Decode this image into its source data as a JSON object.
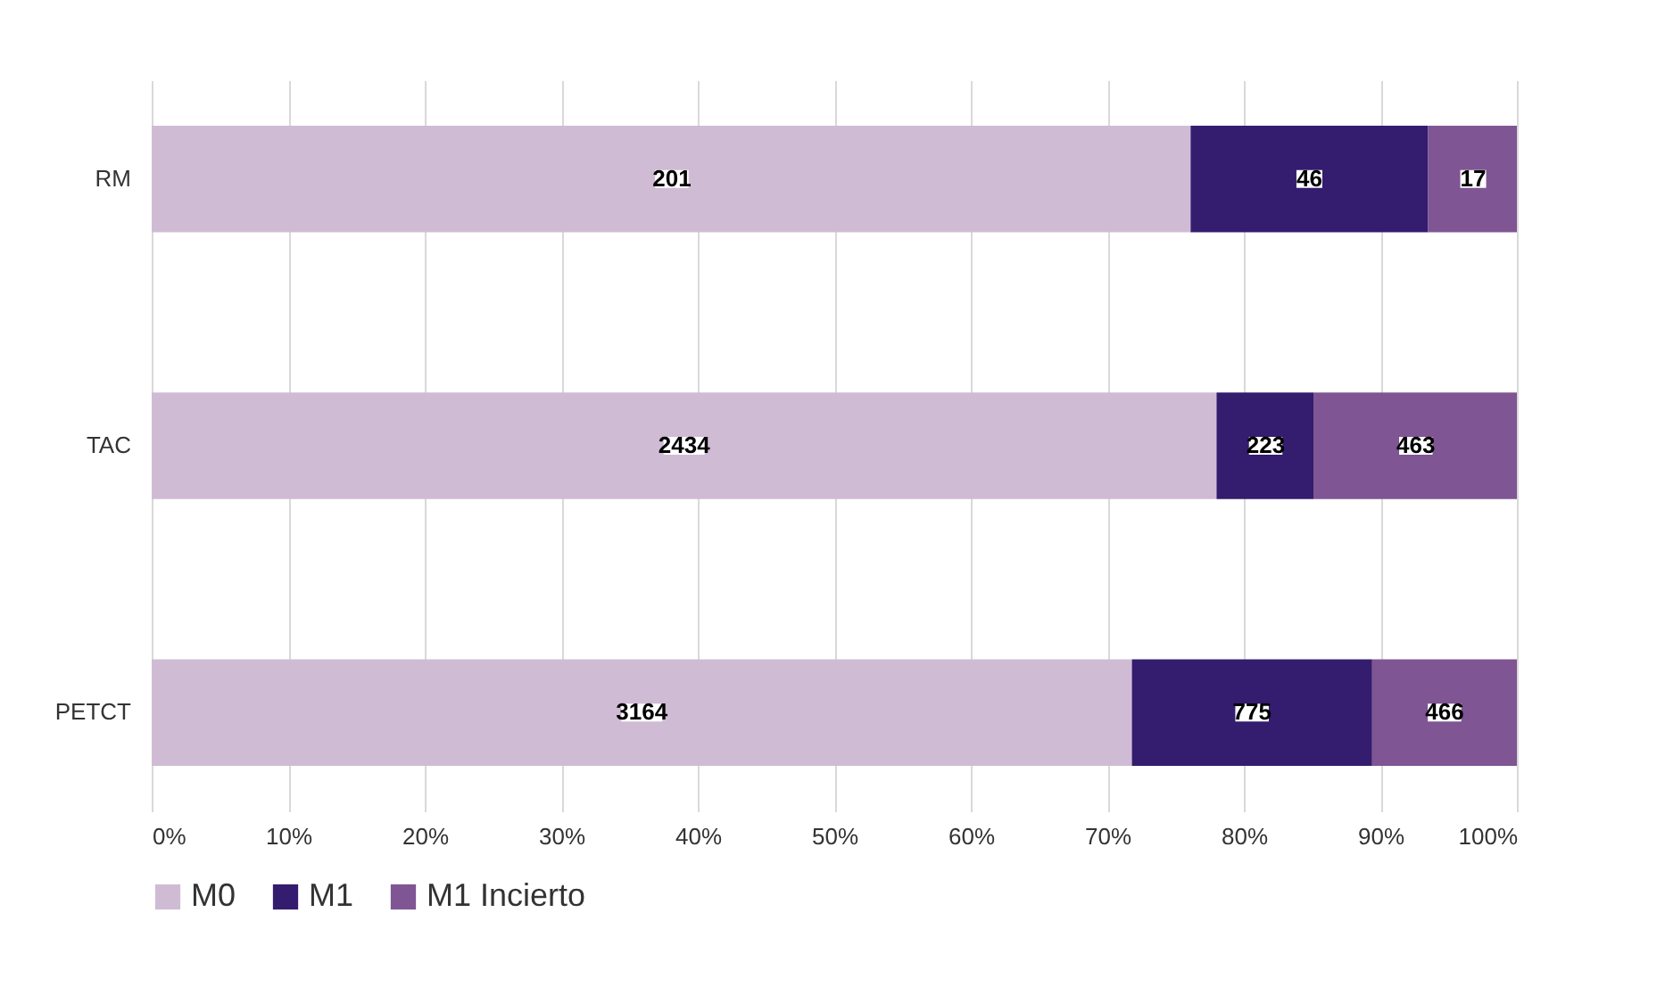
{
  "chart_data": {
    "type": "bar",
    "orientation": "horizontal",
    "stacked": true,
    "categories": [
      "RM",
      "TAC",
      "PETCT"
    ],
    "series": [
      {
        "name": "M0",
        "color": "#cfbcd4",
        "values": [
          76.1,
          78.0,
          71.8
        ]
      },
      {
        "name": "M1",
        "color": "#341c6e",
        "values": [
          17.4,
          7.1,
          17.6
        ]
      },
      {
        "name": "M1 Incierto",
        "color": "#7f5594",
        "values": [
          6.5,
          14.9,
          10.6
        ]
      }
    ],
    "annotations": [
      {
        "text": "201",
        "x": 38.1,
        "y": "RM"
      },
      {
        "text": "46",
        "x": 84.8,
        "y": "RM"
      },
      {
        "text": "17",
        "x": 96.8,
        "y": "RM"
      },
      {
        "text": "2434",
        "x": 39.0,
        "y": "TAC"
      },
      {
        "text": "223",
        "x": 81.6,
        "y": "TAC"
      },
      {
        "text": "463",
        "x": 92.6,
        "y": "TAC"
      },
      {
        "text": "3164",
        "x": 35.9,
        "y": "PETCT"
      },
      {
        "text": "775",
        "x": 80.6,
        "y": "PETCT"
      },
      {
        "text": "466",
        "x": 94.7,
        "y": "PETCT"
      }
    ],
    "xlim": [
      0,
      100
    ],
    "xticks": [
      {
        "value": 0,
        "label": "0%"
      },
      {
        "value": 10,
        "label": "10%"
      },
      {
        "value": 20,
        "label": "20%"
      },
      {
        "value": 30,
        "label": "30%"
      },
      {
        "value": 40,
        "label": "40%"
      },
      {
        "value": 50,
        "label": "50%"
      },
      {
        "value": 60,
        "label": "60%"
      },
      {
        "value": 70,
        "label": "70%"
      },
      {
        "value": 80,
        "label": "80%"
      },
      {
        "value": 90,
        "label": "90%"
      },
      {
        "value": 100,
        "label": "100%"
      }
    ],
    "grid": "x",
    "legend": "bottom"
  }
}
